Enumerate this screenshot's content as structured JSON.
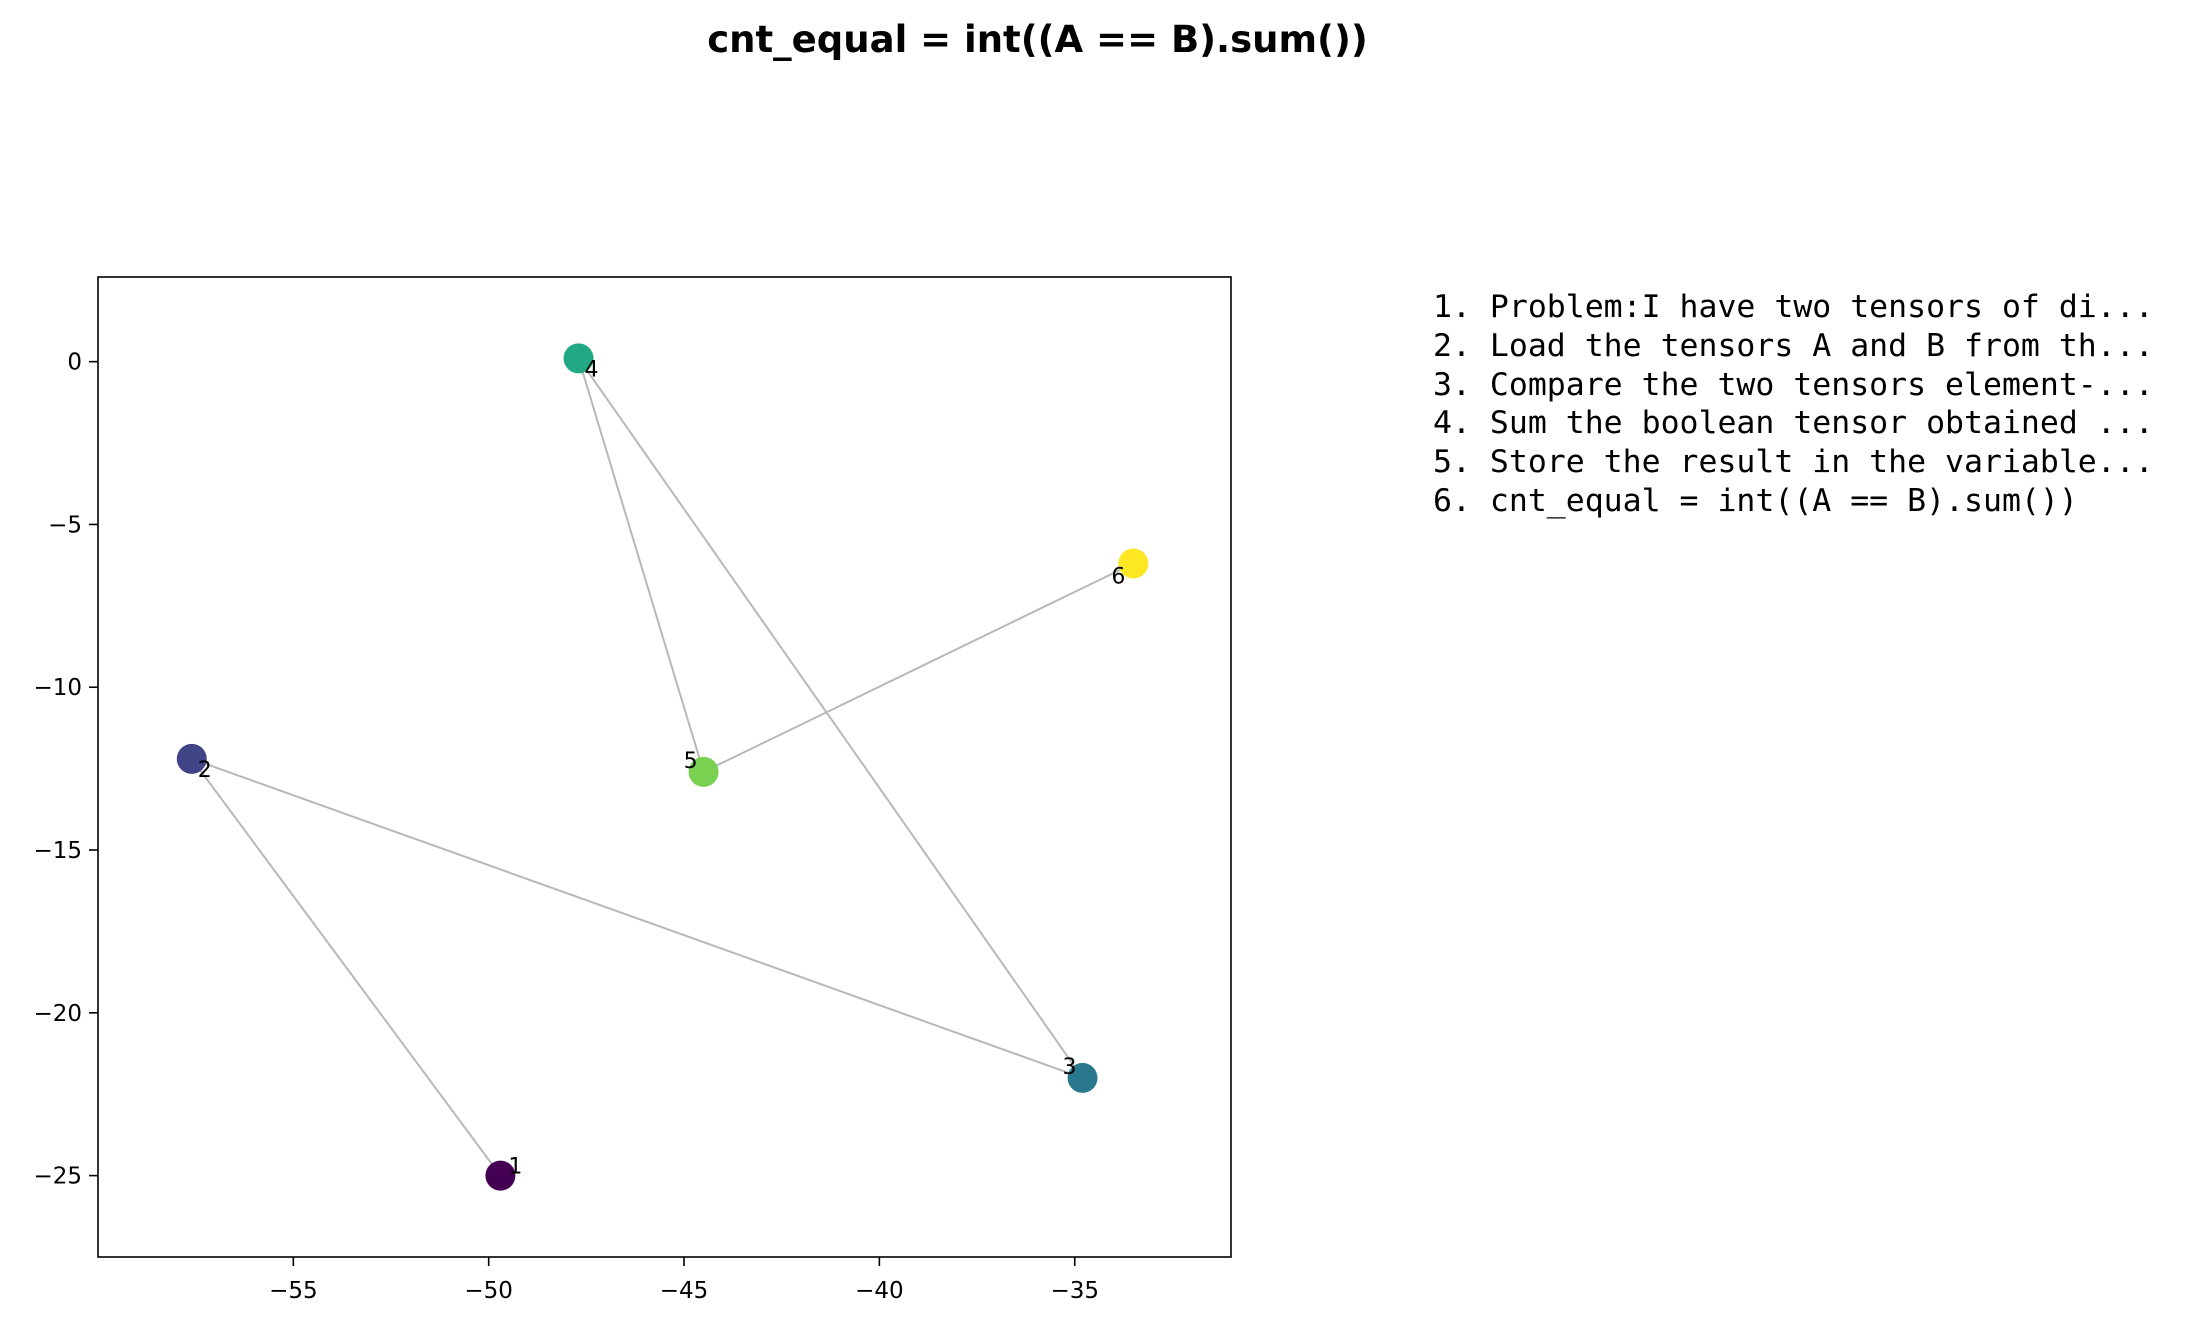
{
  "chart_data": {
    "type": "scatter",
    "title": "cnt_equal = int((A == B).sum())",
    "xlabel": "",
    "ylabel": "",
    "xlim": [
      -60,
      -31
    ],
    "ylim": [
      -27.5,
      2.6
    ],
    "xticks": [
      -55,
      -50,
      -45,
      -40,
      -35
    ],
    "yticks": [
      0,
      -5,
      -10,
      -15,
      -20,
      -25
    ],
    "grid": false,
    "points": [
      {
        "label": "1",
        "x": -49.7,
        "y": -25.0,
        "color": "#440154"
      },
      {
        "label": "2",
        "x": -57.6,
        "y": -12.2,
        "color": "#414487"
      },
      {
        "label": "3",
        "x": -34.8,
        "y": -22.0,
        "color": "#2a788e"
      },
      {
        "label": "4",
        "x": -47.7,
        "y": 0.1,
        "color": "#22a884"
      },
      {
        "label": "5",
        "x": -44.5,
        "y": -12.6,
        "color": "#7ad151"
      },
      {
        "label": "6",
        "x": -33.5,
        "y": -6.2,
        "color": "#fde725"
      }
    ],
    "path_order": [
      1,
      2,
      3,
      4,
      5,
      6
    ],
    "path_color": "#b8b8b8",
    "legend_items": [
      "1. Problem:I have two tensors of di...",
      "2. Load the tensors A and B from th...",
      "3. Compare the two tensors element-...",
      "4. Sum the boolean tensor obtained ...",
      "5. Store the result in the variable...",
      "6. cnt_equal = int((A == B).sum())"
    ],
    "legend_placement": "right"
  }
}
